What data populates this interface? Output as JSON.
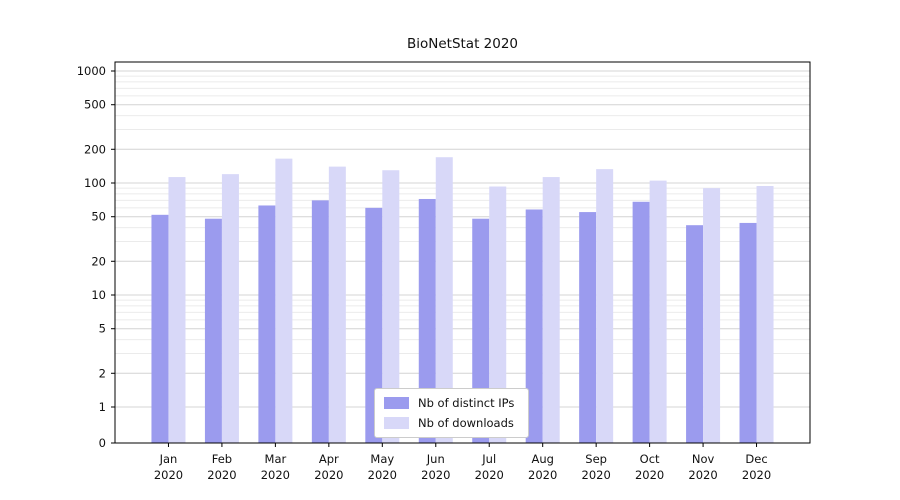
{
  "figure": {
    "background": "#ffffff"
  },
  "chart_data": {
    "type": "bar",
    "title": "BioNetStat 2020",
    "categories": [
      "Jan 2020",
      "Feb 2020",
      "Mar 2020",
      "Apr 2020",
      "May 2020",
      "Jun 2020",
      "Jul 2020",
      "Aug 2020",
      "Sep 2020",
      "Oct 2020",
      "Nov 2020",
      "Dec 2020"
    ],
    "series": [
      {
        "name": "Nb of distinct IPs",
        "color": "#9b9bee",
        "values": [
          52,
          48,
          63,
          70,
          60,
          72,
          48,
          58,
          55,
          68,
          42,
          44
        ]
      },
      {
        "name": "Nb of downloads",
        "color": "#d8d8f8",
        "values": [
          113,
          120,
          165,
          140,
          130,
          170,
          93,
          113,
          133,
          105,
          90,
          94
        ]
      }
    ],
    "yscale": "symlog",
    "ylim": [
      0,
      1000
    ],
    "yticks": [
      0,
      1,
      2,
      5,
      10,
      20,
      50,
      100,
      200,
      500,
      1000
    ],
    "xlabel": "",
    "ylabel": "",
    "grid": true,
    "legend": {
      "position": "lower center",
      "labels": [
        "Nb of distinct IPs",
        "Nb of downloads"
      ]
    },
    "colors": {
      "axis": "#000000",
      "grid_major": "#d4d4d4",
      "grid_minor": "#ebebeb",
      "legend_border": "#cccccc"
    }
  }
}
